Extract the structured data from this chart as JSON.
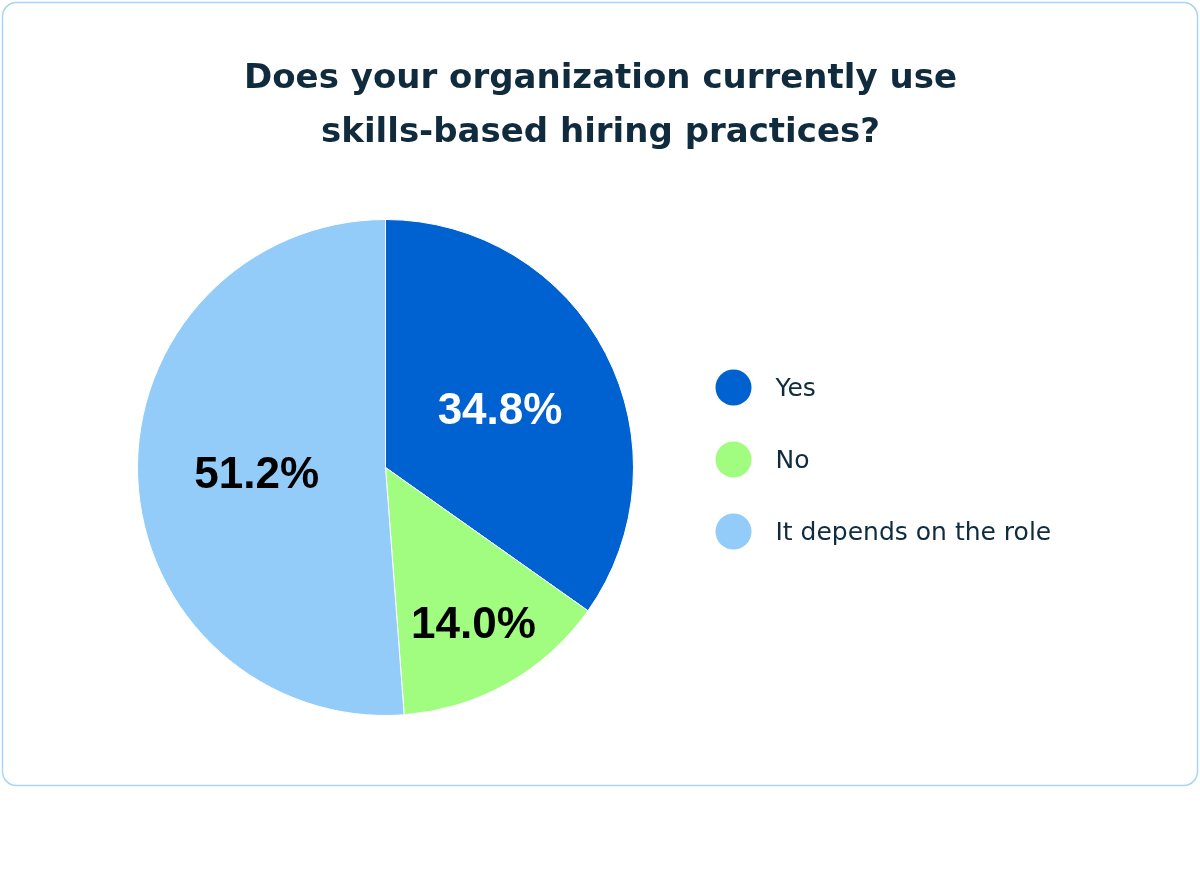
{
  "chart_data": {
    "type": "pie",
    "title": "Does your organization currently use skills-based hiring practices?",
    "categories": [
      "Yes",
      "No",
      "It depends on the role"
    ],
    "values": [
      34.8,
      14.0,
      51.2
    ],
    "value_labels": [
      "34.8%",
      "14.0%",
      "51.2%"
    ],
    "colors": [
      "#0062d1",
      "#a1fd80",
      "#93cbf9"
    ],
    "legend": "right"
  }
}
